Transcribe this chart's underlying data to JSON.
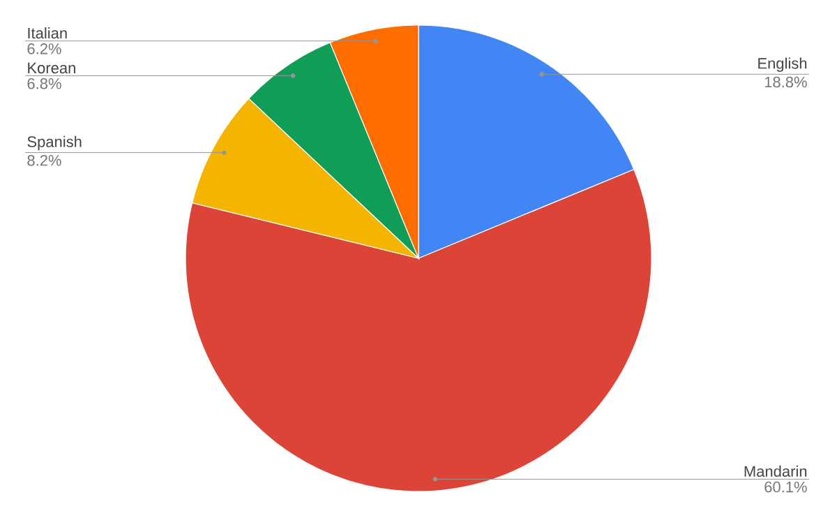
{
  "chart_data": {
    "type": "pie",
    "categories": [
      "English",
      "Mandarin",
      "Spanish",
      "Korean",
      "Italian"
    ],
    "values": [
      18.8,
      60.1,
      8.2,
      6.8,
      6.2
    ],
    "value_labels": [
      "18.8%",
      "60.1%",
      "8.2%",
      "6.8%",
      "6.2%"
    ],
    "colors": [
      "#4285f4",
      "#db4437",
      "#f4b400",
      "#0f9d58",
      "#ff6d01"
    ]
  }
}
